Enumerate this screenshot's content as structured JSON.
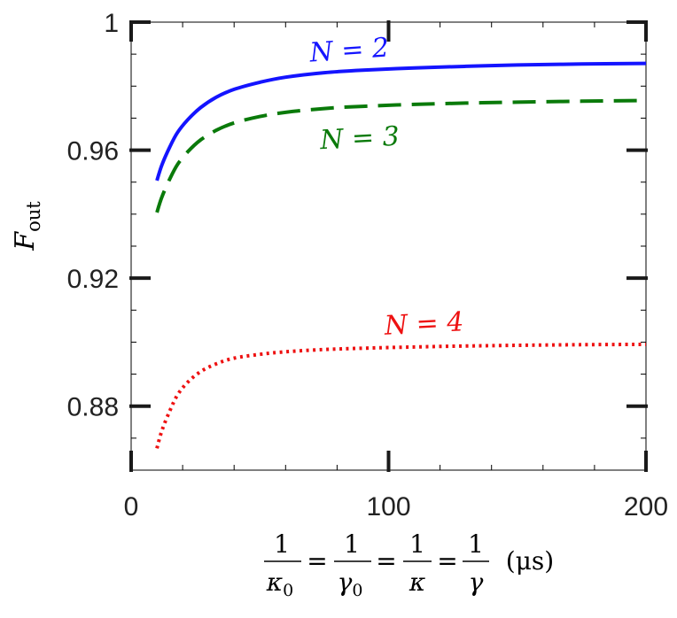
{
  "chart_data": {
    "type": "line",
    "xlabel": {
      "fractions": [
        {
          "num": "1",
          "den": "κ",
          "sub": "0"
        },
        {
          "num": "1",
          "den": "γ",
          "sub": "0"
        },
        {
          "num": "1",
          "den": "κ",
          "sub": ""
        },
        {
          "num": "1",
          "den": "γ",
          "sub": ""
        }
      ],
      "equals": "=",
      "unit": "(μs)"
    },
    "ylabel": {
      "main": "F",
      "sub": "out"
    },
    "xlim": [
      0,
      200
    ],
    "ylim": [
      0.86,
      1.0
    ],
    "xticks": [
      0,
      100,
      200
    ],
    "xtick_labels": [
      "0",
      "100",
      "200"
    ],
    "yticks": [
      0.88,
      0.92,
      0.96,
      1.0
    ],
    "ytick_labels": [
      "0.88",
      "0.92",
      "0.96",
      "1"
    ],
    "grid": false,
    "series": [
      {
        "name": "N = 2",
        "label_parts": {
          "var": "N",
          "eq": " = ",
          "val": "2"
        },
        "color": "#1414ff",
        "style": "solid",
        "x": [
          10,
          12,
          15,
          18,
          22,
          27,
          33,
          40,
          50,
          60,
          75,
          90,
          110,
          130,
          150,
          175,
          200
        ],
        "y": [
          0.9505,
          0.9555,
          0.961,
          0.9655,
          0.9695,
          0.9733,
          0.9765,
          0.979,
          0.9812,
          0.9828,
          0.9842,
          0.985,
          0.9857,
          0.9862,
          0.9866,
          0.9869,
          0.9871
        ]
      },
      {
        "name": "N = 3",
        "label_parts": {
          "var": "N",
          "eq": " = ",
          "val": "3"
        },
        "color": "#0a7a0a",
        "style": "dashed",
        "x": [
          10,
          12,
          15,
          18,
          22,
          27,
          33,
          40,
          50,
          60,
          75,
          90,
          110,
          130,
          150,
          175,
          200
        ],
        "y": [
          0.9405,
          0.9455,
          0.951,
          0.9555,
          0.9595,
          0.9632,
          0.9662,
          0.9685,
          0.9705,
          0.9718,
          0.973,
          0.9737,
          0.9743,
          0.9747,
          0.975,
          0.9753,
          0.9755
        ]
      },
      {
        "name": "N = 4",
        "label_parts": {
          "var": "N",
          "eq": " = ",
          "val": "4"
        },
        "color": "#ee1111",
        "style": "dotted",
        "x": [
          10,
          12,
          15,
          18,
          22,
          27,
          33,
          40,
          50,
          60,
          75,
          90,
          110,
          130,
          150,
          175,
          200
        ],
        "y": [
          0.8668,
          0.8725,
          0.8785,
          0.8835,
          0.8875,
          0.8908,
          0.8932,
          0.895,
          0.8962,
          0.897,
          0.8977,
          0.8981,
          0.8985,
          0.8988,
          0.899,
          0.8992,
          0.8993
        ]
      }
    ],
    "annotations": [
      {
        "series": 0,
        "x": 85,
        "y": 0.9885,
        "angle": -4
      },
      {
        "series": 1,
        "x": 89,
        "y": 0.961,
        "angle": -3
      },
      {
        "series": 2,
        "x": 114,
        "y": 0.903,
        "angle": -3
      }
    ]
  }
}
